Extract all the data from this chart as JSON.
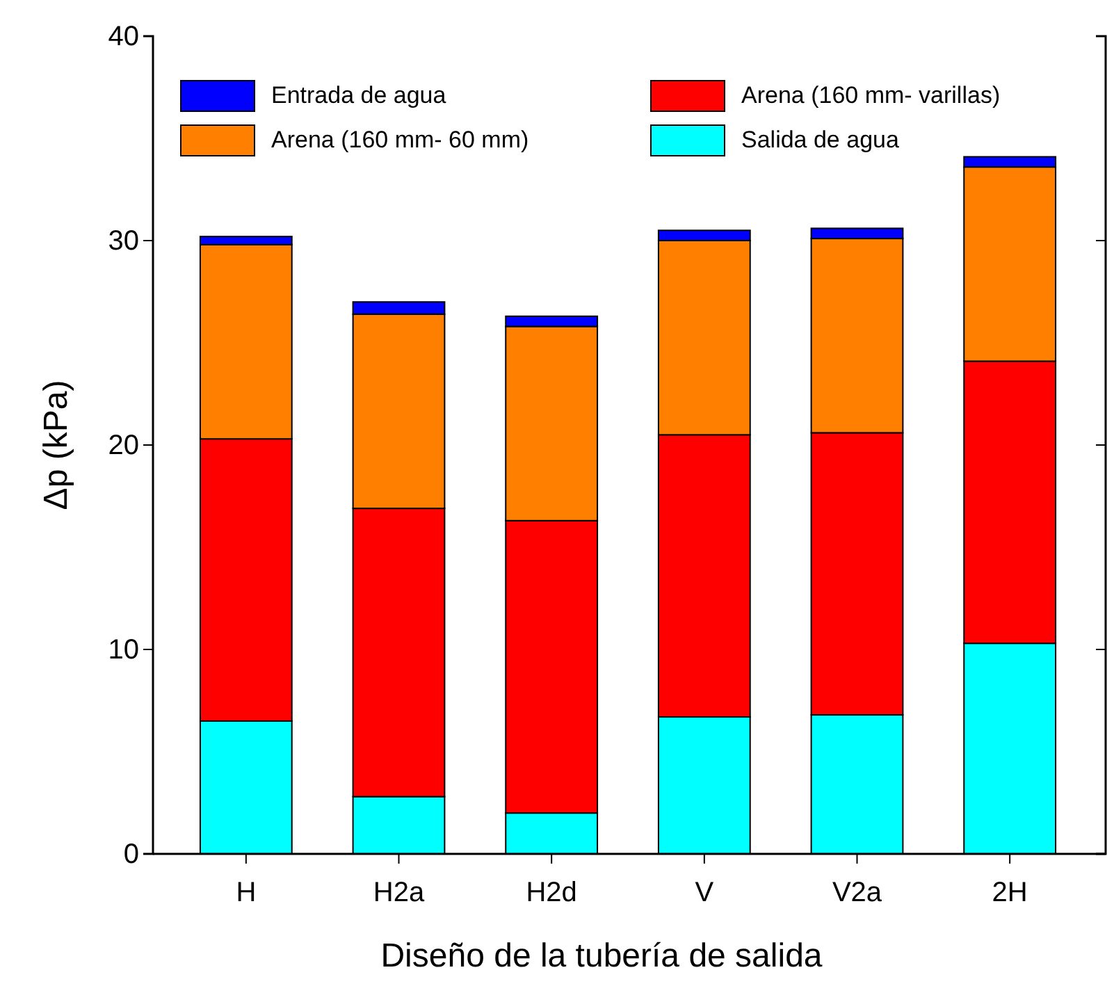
{
  "chart_data": {
    "type": "bar",
    "stacked": true,
    "xlabel": "Diseño de la tubería de salida",
    "ylabel": "Δp (kPa)",
    "categories": [
      "H",
      "H2a",
      "H2d",
      "V",
      "V2a",
      "2H"
    ],
    "series": [
      {
        "name": "Salida de agua",
        "color": "#00ffff",
        "values": [
          6.5,
          2.8,
          2.0,
          6.7,
          6.8,
          10.3
        ]
      },
      {
        "name": "Arena (160  mm- varillas)",
        "color": "#ff0000",
        "values": [
          13.8,
          14.1,
          14.3,
          13.8,
          13.8,
          13.8
        ]
      },
      {
        "name": "Arena (160  mm- 60 mm)",
        "color": "#ff8000",
        "values": [
          9.5,
          9.5,
          9.5,
          9.5,
          9.5,
          9.5
        ]
      },
      {
        "name": "Entrada de agua",
        "color": "#0000ff",
        "values": [
          0.4,
          0.6,
          0.5,
          0.5,
          0.5,
          0.5
        ]
      }
    ],
    "ylim": [
      0,
      40
    ],
    "yticks": [
      0,
      10,
      20,
      30,
      40
    ],
    "legend": "top",
    "grid": false
  }
}
